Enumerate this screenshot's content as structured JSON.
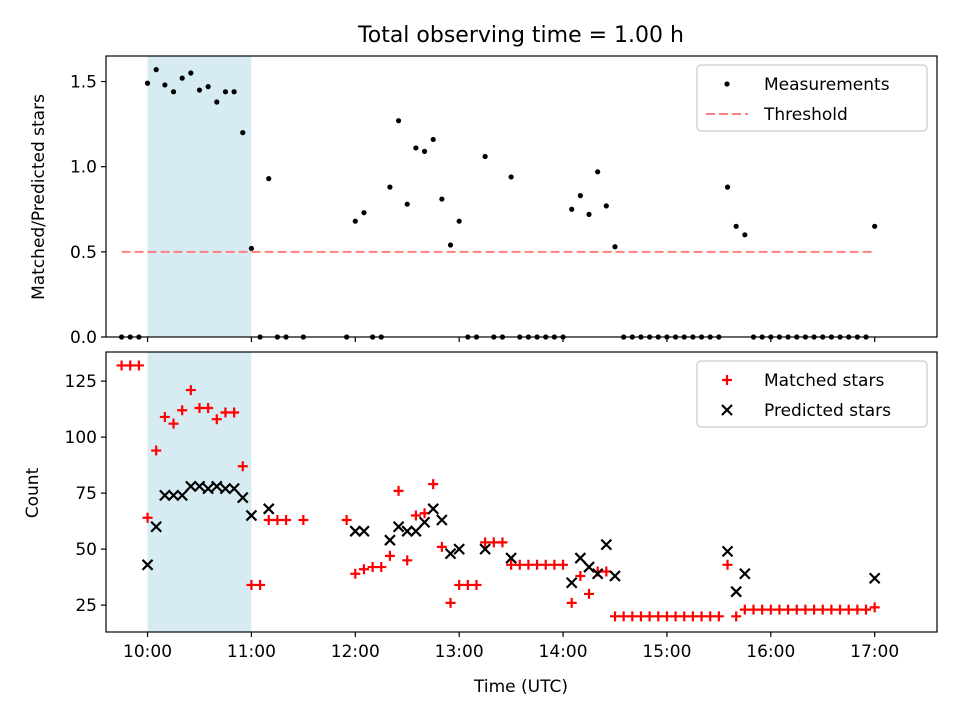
{
  "chart_data": [
    {
      "type": "scatter",
      "title": "Total observing time = 1.00 h",
      "xlabel": "",
      "ylabel": "Matched/Predicted stars",
      "xlim": [
        "09:36",
        "17:36"
      ],
      "ylim": [
        0,
        1.65
      ],
      "yticks": [
        "0.0",
        "0.5",
        "1.0",
        "1.5"
      ],
      "highlight_span": [
        "10:00",
        "11:00"
      ],
      "highlight_color": "#add8e6",
      "legend_position": "top-right",
      "series": [
        {
          "name": "Measurements",
          "color": "#000000",
          "marker": "dot",
          "points": [
            [
              "09:45",
              0
            ],
            [
              "09:50",
              0
            ],
            [
              "09:55",
              0
            ],
            [
              "10:00",
              1.49
            ],
            [
              "10:05",
              1.57
            ],
            [
              "10:10",
              1.48
            ],
            [
              "10:15",
              1.44
            ],
            [
              "10:20",
              1.52
            ],
            [
              "10:25",
              1.55
            ],
            [
              "10:30",
              1.45
            ],
            [
              "10:35",
              1.47
            ],
            [
              "10:40",
              1.38
            ],
            [
              "10:45",
              1.44
            ],
            [
              "10:50",
              1.44
            ],
            [
              "10:55",
              1.2
            ],
            [
              "11:00",
              0.52
            ],
            [
              "11:05",
              0
            ],
            [
              "11:10",
              0.93
            ],
            [
              "11:15",
              0
            ],
            [
              "11:20",
              0
            ],
            [
              "11:30",
              0
            ],
            [
              "11:55",
              0
            ],
            [
              "12:00",
              0.68
            ],
            [
              "12:05",
              0.73
            ],
            [
              "12:10",
              0
            ],
            [
              "12:15",
              0
            ],
            [
              "12:20",
              0.88
            ],
            [
              "12:25",
              1.27
            ],
            [
              "12:30",
              0.78
            ],
            [
              "12:35",
              1.11
            ],
            [
              "12:40",
              1.09
            ],
            [
              "12:45",
              1.16
            ],
            [
              "12:50",
              0.81
            ],
            [
              "12:55",
              0.54
            ],
            [
              "13:00",
              0.68
            ],
            [
              "13:05",
              0
            ],
            [
              "13:10",
              0
            ],
            [
              "13:15",
              1.06
            ],
            [
              "13:20",
              0
            ],
            [
              "13:25",
              0
            ],
            [
              "13:30",
              0.94
            ],
            [
              "13:35",
              0
            ],
            [
              "13:40",
              0
            ],
            [
              "13:45",
              0
            ],
            [
              "13:50",
              0
            ],
            [
              "13:55",
              0
            ],
            [
              "14:00",
              0
            ],
            [
              "14:05",
              0.75
            ],
            [
              "14:10",
              0.83
            ],
            [
              "14:15",
              0.72
            ],
            [
              "14:20",
              0.97
            ],
            [
              "14:25",
              0.77
            ],
            [
              "14:30",
              0.53
            ],
            [
              "14:35",
              0
            ],
            [
              "14:40",
              0
            ],
            [
              "14:45",
              0
            ],
            [
              "14:50",
              0
            ],
            [
              "14:55",
              0
            ],
            [
              "15:00",
              0
            ],
            [
              "15:05",
              0
            ],
            [
              "15:10",
              0
            ],
            [
              "15:15",
              0
            ],
            [
              "15:20",
              0
            ],
            [
              "15:25",
              0
            ],
            [
              "15:30",
              0
            ],
            [
              "15:35",
              0.88
            ],
            [
              "15:40",
              0.65
            ],
            [
              "15:45",
              0.6
            ],
            [
              "15:50",
              0
            ],
            [
              "15:55",
              0
            ],
            [
              "16:00",
              0
            ],
            [
              "16:05",
              0
            ],
            [
              "16:10",
              0
            ],
            [
              "16:15",
              0
            ],
            [
              "16:20",
              0
            ],
            [
              "16:25",
              0
            ],
            [
              "16:30",
              0
            ],
            [
              "16:35",
              0
            ],
            [
              "16:40",
              0
            ],
            [
              "16:45",
              0
            ],
            [
              "16:50",
              0
            ],
            [
              "16:55",
              0
            ],
            [
              "17:00",
              0.65
            ]
          ]
        },
        {
          "name": "Threshold",
          "color": "#ff7f7f",
          "style": "dashed",
          "points": [
            [
              "09:45",
              0.5
            ],
            [
              "17:00",
              0.5
            ]
          ]
        }
      ]
    },
    {
      "type": "scatter",
      "title": "",
      "xlabel": "Time (UTC)",
      "ylabel": "Count",
      "xlim": [
        "09:36",
        "17:36"
      ],
      "ylim": [
        13,
        138
      ],
      "xticks": [
        "10:00",
        "11:00",
        "12:00",
        "13:00",
        "14:00",
        "15:00",
        "16:00",
        "17:00"
      ],
      "yticks": [
        "25",
        "50",
        "75",
        "100",
        "125"
      ],
      "highlight_span": [
        "10:00",
        "11:00"
      ],
      "highlight_color": "#add8e6",
      "legend_position": "top-right",
      "series": [
        {
          "name": "Matched stars",
          "color": "#ff0000",
          "marker": "plus",
          "points": [
            [
              "09:45",
              132
            ],
            [
              "09:50",
              132
            ],
            [
              "09:55",
              132
            ],
            [
              "10:00",
              64
            ],
            [
              "10:05",
              94
            ],
            [
              "10:10",
              109
            ],
            [
              "10:15",
              106
            ],
            [
              "10:20",
              112
            ],
            [
              "10:25",
              121
            ],
            [
              "10:30",
              113
            ],
            [
              "10:35",
              113
            ],
            [
              "10:40",
              108
            ],
            [
              "10:45",
              111
            ],
            [
              "10:50",
              111
            ],
            [
              "10:55",
              87
            ],
            [
              "11:00",
              34
            ],
            [
              "11:05",
              34
            ],
            [
              "11:10",
              63
            ],
            [
              "11:15",
              63
            ],
            [
              "11:20",
              63
            ],
            [
              "11:30",
              63
            ],
            [
              "11:55",
              63
            ],
            [
              "12:00",
              39
            ],
            [
              "12:05",
              41
            ],
            [
              "12:10",
              42
            ],
            [
              "12:15",
              42
            ],
            [
              "12:20",
              47
            ],
            [
              "12:25",
              76
            ],
            [
              "12:30",
              45
            ],
            [
              "12:35",
              65
            ],
            [
              "12:40",
              66
            ],
            [
              "12:45",
              79
            ],
            [
              "12:50",
              51
            ],
            [
              "12:55",
              26
            ],
            [
              "13:00",
              34
            ],
            [
              "13:05",
              34
            ],
            [
              "13:10",
              34
            ],
            [
              "13:15",
              53
            ],
            [
              "13:20",
              53
            ],
            [
              "13:25",
              53
            ],
            [
              "13:30",
              43
            ],
            [
              "13:35",
              43
            ],
            [
              "13:40",
              43
            ],
            [
              "13:45",
              43
            ],
            [
              "13:50",
              43
            ],
            [
              "13:55",
              43
            ],
            [
              "14:00",
              43
            ],
            [
              "14:05",
              26
            ],
            [
              "14:10",
              38
            ],
            [
              "14:15",
              30
            ],
            [
              "14:20",
              40
            ],
            [
              "14:25",
              40
            ],
            [
              "14:30",
              20
            ],
            [
              "14:35",
              20
            ],
            [
              "14:40",
              20
            ],
            [
              "14:45",
              20
            ],
            [
              "14:50",
              20
            ],
            [
              "14:55",
              20
            ],
            [
              "15:00",
              20
            ],
            [
              "15:05",
              20
            ],
            [
              "15:10",
              20
            ],
            [
              "15:15",
              20
            ],
            [
              "15:20",
              20
            ],
            [
              "15:25",
              20
            ],
            [
              "15:30",
              20
            ],
            [
              "15:35",
              43
            ],
            [
              "15:40",
              20
            ],
            [
              "15:45",
              23
            ],
            [
              "15:50",
              23
            ],
            [
              "15:55",
              23
            ],
            [
              "16:00",
              23
            ],
            [
              "16:05",
              23
            ],
            [
              "16:10",
              23
            ],
            [
              "16:15",
              23
            ],
            [
              "16:20",
              23
            ],
            [
              "16:25",
              23
            ],
            [
              "16:30",
              23
            ],
            [
              "16:35",
              23
            ],
            [
              "16:40",
              23
            ],
            [
              "16:45",
              23
            ],
            [
              "16:50",
              23
            ],
            [
              "16:55",
              23
            ],
            [
              "17:00",
              24
            ]
          ]
        },
        {
          "name": "Predicted stars",
          "color": "#000000",
          "marker": "x",
          "points": [
            [
              "10:00",
              43
            ],
            [
              "10:05",
              60
            ],
            [
              "10:10",
              74
            ],
            [
              "10:15",
              74
            ],
            [
              "10:20",
              74
            ],
            [
              "10:25",
              78
            ],
            [
              "10:30",
              78
            ],
            [
              "10:35",
              77
            ],
            [
              "10:40",
              78
            ],
            [
              "10:45",
              77
            ],
            [
              "10:50",
              77
            ],
            [
              "10:55",
              73
            ],
            [
              "11:00",
              65
            ],
            [
              "11:10",
              68
            ],
            [
              "12:00",
              58
            ],
            [
              "12:05",
              58
            ],
            [
              "12:20",
              54
            ],
            [
              "12:25",
              60
            ],
            [
              "12:30",
              58
            ],
            [
              "12:35",
              58
            ],
            [
              "12:40",
              62
            ],
            [
              "12:45",
              68
            ],
            [
              "12:50",
              63
            ],
            [
              "12:55",
              48
            ],
            [
              "13:00",
              50
            ],
            [
              "13:15",
              50
            ],
            [
              "13:30",
              46
            ],
            [
              "14:05",
              35
            ],
            [
              "14:10",
              46
            ],
            [
              "14:15",
              42
            ],
            [
              "14:20",
              39
            ],
            [
              "14:25",
              52
            ],
            [
              "14:30",
              38
            ],
            [
              "15:35",
              49
            ],
            [
              "15:40",
              31
            ],
            [
              "15:45",
              39
            ],
            [
              "17:00",
              37
            ]
          ]
        }
      ]
    }
  ]
}
